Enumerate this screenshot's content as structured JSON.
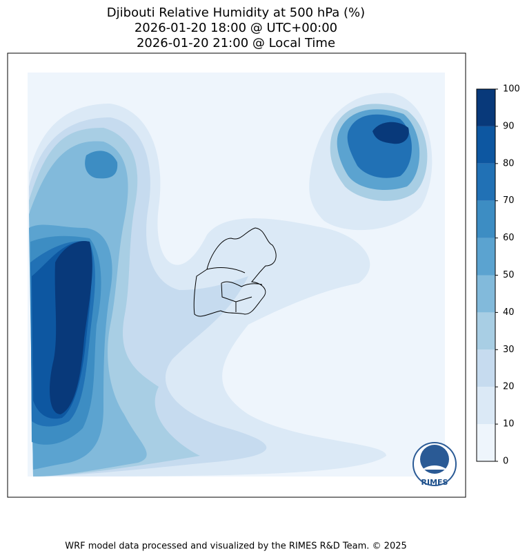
{
  "chart_data": {
    "type": "contour-map",
    "title_lines": [
      "Djibouti Relative Humidity at 500 hPa (%)",
      "2026-01-20 18:00 @ UTC+00:00",
      "2026-01-20 21:00 @ Local Time"
    ],
    "colorbar": {
      "levels": [
        0,
        10,
        20,
        30,
        40,
        50,
        60,
        70,
        80,
        90,
        100
      ],
      "colors": [
        "#eef5fc",
        "#dbe9f6",
        "#c6dbef",
        "#a8cee4",
        "#82badb",
        "#5ba3d0",
        "#3d8dc3",
        "#2171b5",
        "#0d57a1",
        "#08397a"
      ]
    },
    "logo_text": "RIMES",
    "footer": "WRF model data processed and visualized by the RIMES R&D Team. © 2025"
  }
}
